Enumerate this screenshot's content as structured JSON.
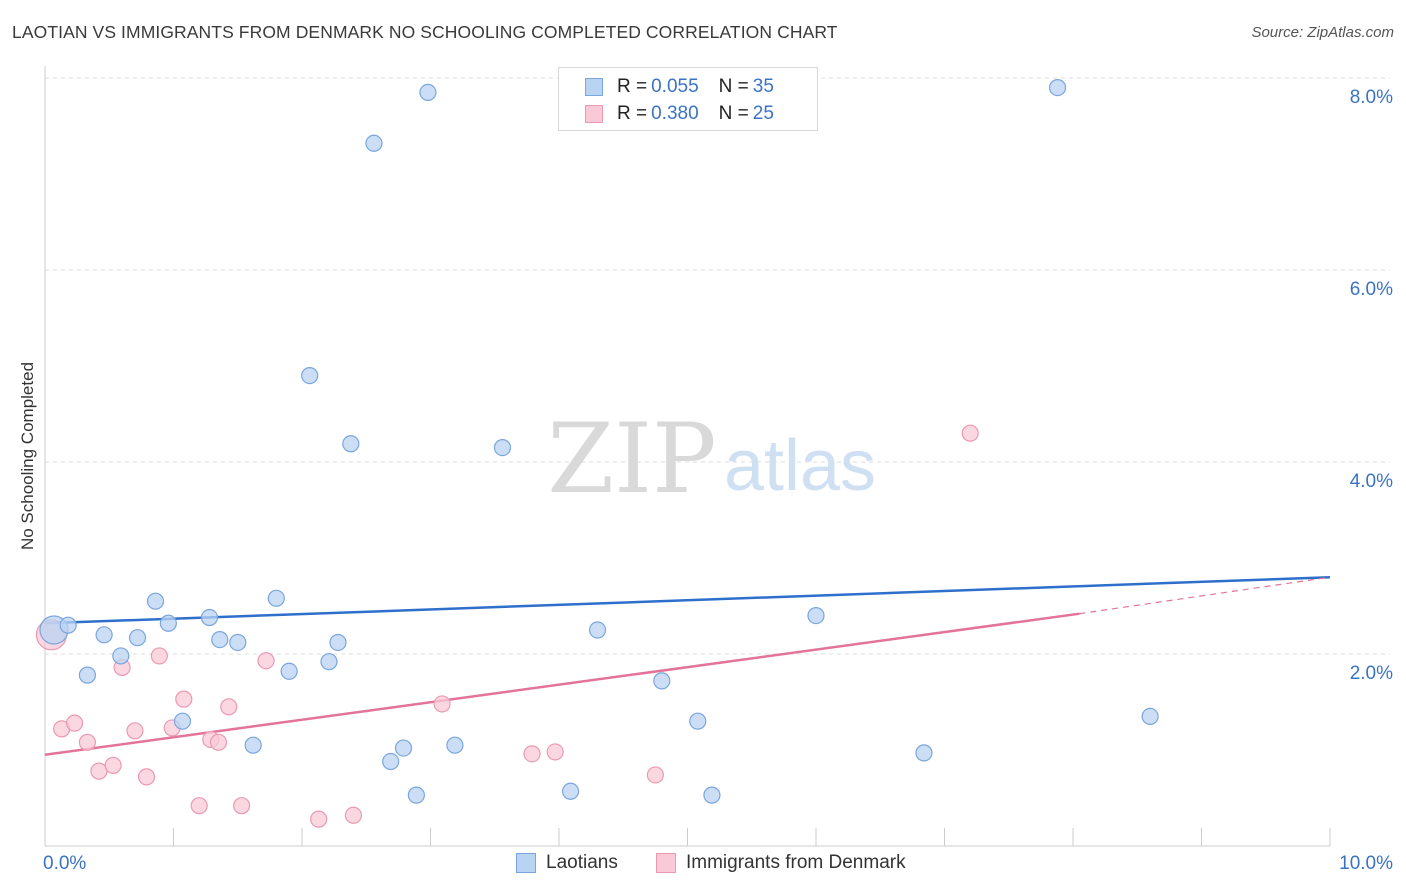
{
  "title": "LAOTIAN VS IMMIGRANTS FROM DENMARK NO SCHOOLING COMPLETED CORRELATION CHART",
  "source": "Source: ZipAtlas.com",
  "watermark": {
    "zip": "ZIP",
    "atlas": "atlas"
  },
  "legend": {
    "rows": [
      {
        "r_label": "R = ",
        "r_value": "0.055",
        "n_label": "N = ",
        "n_value": "35"
      },
      {
        "r_label": "R = ",
        "r_value": "0.380",
        "n_label": "N = ",
        "n_value": "25"
      }
    ]
  },
  "bottom_legend": [
    "Laotians",
    "Immigrants from Denmark"
  ],
  "colors": {
    "blue_fill": "#b9d3f3",
    "blue_stroke": "#7aa6dd",
    "blue_line": "#2e6fcc",
    "pink_fill": "#f9c9d7",
    "pink_stroke": "#ea9ab2",
    "pink_line": "#e4739a",
    "axis_text": "#3b73c4",
    "grid": "#dddddd"
  },
  "chart_data": {
    "type": "scatter",
    "xlabel": "",
    "ylabel": "No Schooling Completed",
    "xlim": [
      0,
      10
    ],
    "ylim": [
      0,
      8.0
    ],
    "x_tick_labels": [
      "0.0%",
      "10.0%"
    ],
    "y_ticks": [
      2.0,
      4.0,
      6.0,
      8.0
    ],
    "y_tick_labels": [
      "2.0%",
      "4.0%",
      "6.0%",
      "8.0%"
    ],
    "grid": true,
    "series": [
      {
        "name": "Laotians",
        "color": "#b9d3f3",
        "points": [
          [
            0.07,
            2.25
          ],
          [
            0.18,
            2.3
          ],
          [
            0.33,
            1.78
          ],
          [
            0.46,
            2.2
          ],
          [
            0.59,
            1.98
          ],
          [
            0.72,
            2.17
          ],
          [
            0.86,
            2.55
          ],
          [
            0.96,
            2.32
          ],
          [
            1.07,
            1.3
          ],
          [
            1.28,
            2.38
          ],
          [
            1.36,
            2.15
          ],
          [
            1.5,
            2.12
          ],
          [
            1.62,
            1.05
          ],
          [
            1.8,
            2.58
          ],
          [
            1.9,
            1.82
          ],
          [
            2.06,
            4.9
          ],
          [
            2.21,
            1.92
          ],
          [
            2.28,
            2.12
          ],
          [
            2.38,
            4.19
          ],
          [
            2.56,
            7.32
          ],
          [
            2.69,
            0.88
          ],
          [
            2.79,
            1.02
          ],
          [
            2.89,
            0.53
          ],
          [
            2.98,
            7.85
          ],
          [
            3.19,
            1.05
          ],
          [
            3.56,
            4.15
          ],
          [
            4.09,
            0.57
          ],
          [
            4.3,
            2.25
          ],
          [
            4.8,
            1.72
          ],
          [
            5.08,
            1.3
          ],
          [
            5.19,
            0.53
          ],
          [
            6.0,
            2.4
          ],
          [
            6.84,
            0.97
          ],
          [
            7.88,
            7.9
          ],
          [
            8.6,
            1.35
          ]
        ]
      },
      {
        "name": "Immigrants from Denmark",
        "color": "#f9c9d7",
        "points": [
          [
            0.05,
            2.2
          ],
          [
            0.13,
            1.22
          ],
          [
            0.23,
            1.28
          ],
          [
            0.33,
            1.08
          ],
          [
            0.42,
            0.78
          ],
          [
            0.53,
            0.84
          ],
          [
            0.6,
            1.86
          ],
          [
            0.7,
            1.2
          ],
          [
            0.79,
            0.72
          ],
          [
            0.89,
            1.98
          ],
          [
            0.99,
            1.23
          ],
          [
            1.08,
            1.53
          ],
          [
            1.2,
            0.42
          ],
          [
            1.29,
            1.11
          ],
          [
            1.35,
            1.08
          ],
          [
            1.43,
            1.45
          ],
          [
            1.53,
            0.42
          ],
          [
            1.72,
            1.93
          ],
          [
            2.13,
            0.28
          ],
          [
            2.4,
            0.32
          ],
          [
            3.09,
            1.48
          ],
          [
            3.79,
            0.96
          ],
          [
            3.97,
            0.98
          ],
          [
            4.75,
            0.74
          ],
          [
            7.2,
            4.3
          ]
        ]
      }
    ],
    "trend_lines": [
      {
        "series": "Laotians",
        "from": [
          0,
          2.32
        ],
        "to": [
          10,
          2.8
        ]
      },
      {
        "series": "Immigrants from Denmark",
        "from": [
          0,
          0.95
        ],
        "to": [
          8.05,
          2.42
        ],
        "dashed_to": [
          10,
          2.8
        ]
      }
    ]
  }
}
